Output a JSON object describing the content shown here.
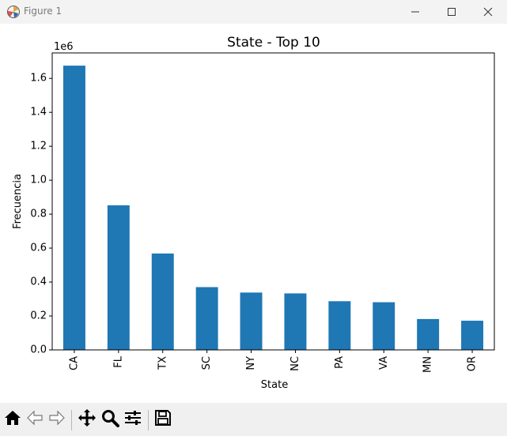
{
  "window": {
    "title": "Figure 1",
    "icons": [
      "matplotlib-icon",
      "minimize-icon",
      "maximize-icon",
      "close-icon"
    ]
  },
  "toolbar": {
    "icons": [
      "home-icon",
      "back-icon",
      "forward-icon",
      "pan-icon",
      "zoom-icon",
      "configure-subplots-icon",
      "save-icon"
    ]
  },
  "colors": {
    "bar": "#1f77b4",
    "axis": "#000000"
  },
  "chart_data": {
    "type": "bar",
    "title": "State - Top 10",
    "xlabel": "State",
    "ylabel": "Frecuencia",
    "offset_text": "1e6",
    "categories": [
      "CA",
      "FL",
      "TX",
      "SC",
      "NY",
      "NC",
      "PA",
      "VA",
      "MN",
      "OR"
    ],
    "values": [
      1675000,
      852000,
      568000,
      370000,
      338000,
      333000,
      287000,
      281000,
      182000,
      172000
    ],
    "ylim": [
      0,
      1750000
    ],
    "yticks": [
      0,
      200000,
      400000,
      600000,
      800000,
      1000000,
      1200000,
      1400000,
      1600000
    ],
    "ytick_labels": [
      "0.0",
      "0.2",
      "0.4",
      "0.6",
      "0.8",
      "1.0",
      "1.2",
      "1.4",
      "1.6"
    ],
    "grid": false,
    "legend": "none"
  }
}
